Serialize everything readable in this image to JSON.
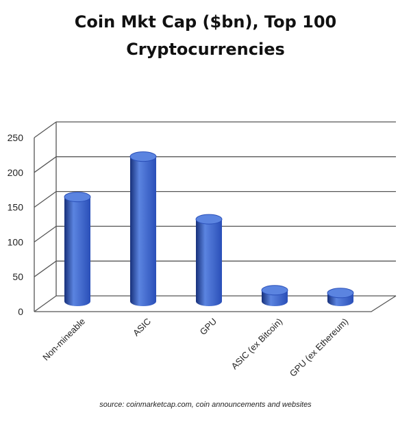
{
  "chart_data": {
    "type": "bar",
    "title_lines": [
      "Coin Mkt Cap ($bn), Top 100",
      "Cryptocurrencies"
    ],
    "categories": [
      "Non-mineable",
      "ASIC",
      "GPU",
      "ASIC (ex Bitcoin)",
      "GPU (ex Ethereum)"
    ],
    "values": [
      150,
      208,
      118,
      16,
      12
    ],
    "ylim": [
      0,
      250
    ],
    "yticks": [
      0,
      50,
      100,
      150,
      200,
      250
    ],
    "grid": true,
    "legend": "none",
    "bar_color": "#2a4fb8",
    "bar_highlight": "#5b84e0",
    "bar_shadow": "#17307a",
    "source": "source: coinmarketcap.com, coin announcements and websites"
  }
}
